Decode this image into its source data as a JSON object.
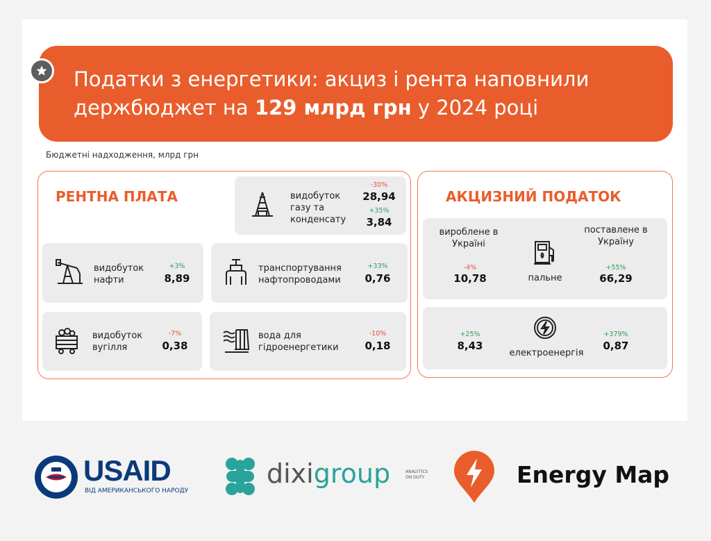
{
  "header": {
    "title_line1": "Податки з енергетики: акциз і рента наповнили",
    "title_prefix": "держбюджет на ",
    "title_strong": "129 млрд грн",
    "title_suffix": " у 2024 році",
    "subtitle": "Бюджетні надходження, млрд грн"
  },
  "rent": {
    "title": "РЕНТНА ПЛАТА",
    "gas": {
      "label": "видобуток газу та конденсату",
      "change_a": "-30%",
      "value_a": "28,94",
      "change_b": "+35%",
      "value_b": "3,84"
    },
    "oil": {
      "label": "видобуток нафти",
      "change": "+3%",
      "value": "8,89"
    },
    "pipeline": {
      "label": "транспортування нафтопроводами",
      "change": "+33%",
      "value": "0,76"
    },
    "coal": {
      "label": "видобуток вугілля",
      "change": "-7%",
      "value": "0,38"
    },
    "hydro": {
      "label": "вода для гідроенергетики",
      "change": "-10%",
      "value": "0,18"
    }
  },
  "excise": {
    "title": "АКЦИЗНИЙ ПОДАТОК",
    "produced_label": "вироблене в Україні",
    "imported_label": "поставлене в Україну",
    "fuel": {
      "label": "пальне",
      "produced_change": "-4%",
      "produced_value": "10,78",
      "imported_change": "+55%",
      "imported_value": "66,29"
    },
    "power": {
      "label": "електроенергія",
      "produced_change": "+25%",
      "produced_value": "8,43",
      "imported_change": "+379%",
      "imported_value": "0,87"
    }
  },
  "logos": {
    "usaid_name": "USAID",
    "usaid_tagline": "ВІД АМЕРИКАНСЬКОГО НАРОДУ",
    "dixi_name_1": "dixi",
    "dixi_name_2": "group",
    "dixi_tagline_1": "ANALYTICS",
    "dixi_tagline_2": "ON DUTY",
    "energymap_name": "Energy Map"
  },
  "colors": {
    "accent": "#e95d2c",
    "tile": "#ececec",
    "positive": "#2e9d62",
    "negative": "#e2533a"
  }
}
